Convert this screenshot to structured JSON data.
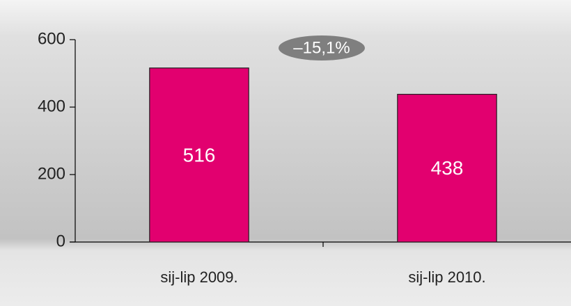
{
  "chart_data": {
    "type": "bar",
    "categories": [
      "sij-lip 2009.",
      "sij-lip 2010."
    ],
    "values": [
      516,
      438
    ],
    "color": "#e2006f",
    "ylim": [
      0,
      600
    ],
    "yticks": [
      0,
      200,
      400,
      600
    ],
    "annotation": "–15,1%"
  }
}
